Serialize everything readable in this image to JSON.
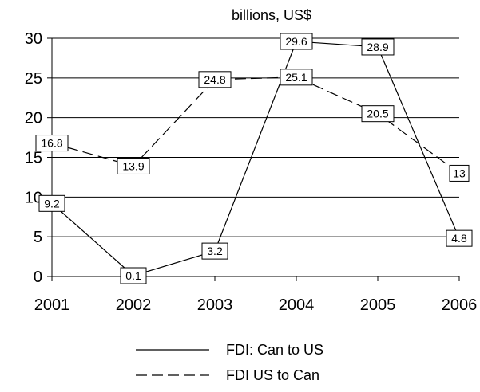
{
  "chart_data": {
    "type": "line",
    "title": "billions, US$",
    "xlabel": "",
    "ylabel": "",
    "categories": [
      "2001",
      "2002",
      "2003",
      "2004",
      "2005",
      "2006"
    ],
    "ylim": [
      0,
      30
    ],
    "yticks": [
      0,
      5,
      10,
      15,
      20,
      25,
      30
    ],
    "grid": true,
    "legend_position": "bottom",
    "series": [
      {
        "name": "FDI: Can to US",
        "style": "solid",
        "color": "#000000",
        "values": [
          9.2,
          0.1,
          3.2,
          29.6,
          28.9,
          4.8
        ],
        "labels": [
          "9.2",
          "0.1",
          "3.2",
          "29.6",
          "28.9",
          "4.8"
        ]
      },
      {
        "name": "FDI US to Can",
        "style": "dashed",
        "color": "#000000",
        "values": [
          16.8,
          13.9,
          24.8,
          25.1,
          20.5,
          13
        ],
        "labels": [
          "16.8",
          "13.9",
          "24.8",
          "25.1",
          "20.5",
          "13"
        ]
      }
    ]
  }
}
